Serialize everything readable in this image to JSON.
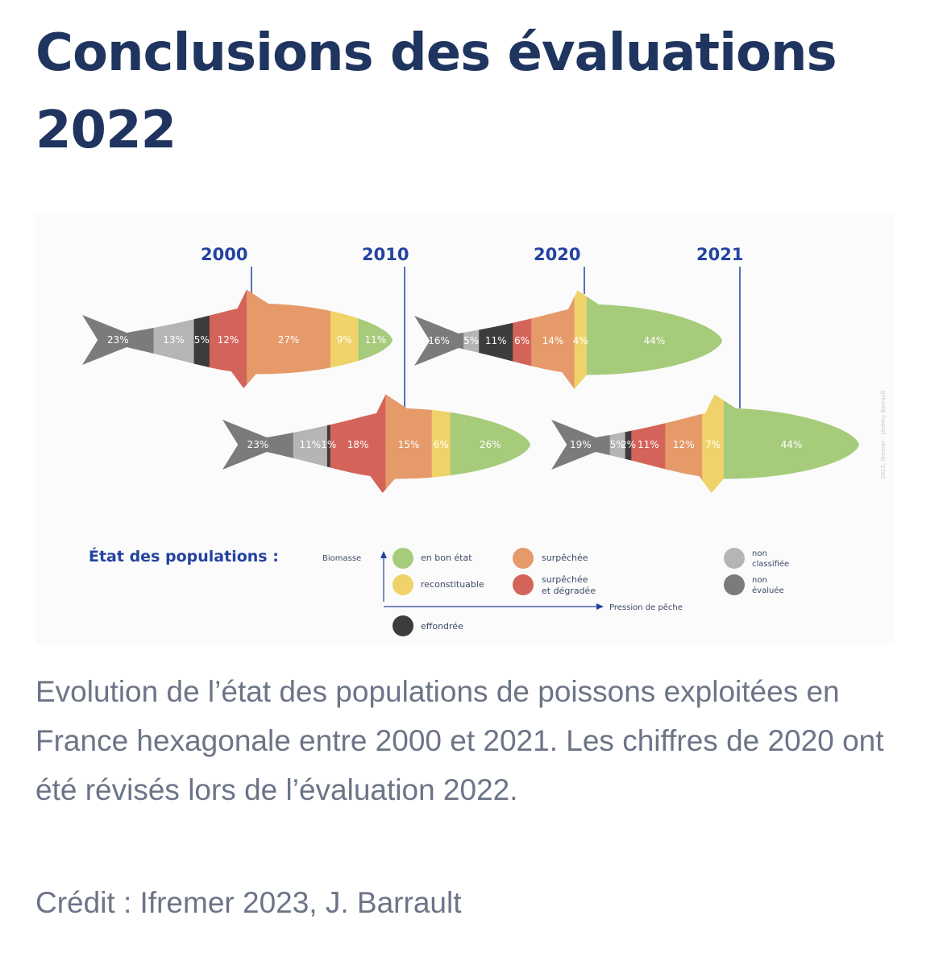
{
  "title": "Conclusions des évaluations 2022",
  "caption": "Evolution de l’état des populations de poissons exploitées en France hexagonale entre 2000 et 2021. Les chiffres de 2020 ont été révisés lors de l’évaluation 2022.",
  "credit": "Crédit : Ifremer 2023, J. Barrault",
  "infographic": {
    "years": [
      "2000",
      "2010",
      "2020",
      "2021"
    ],
    "image_credit": "2023, Ifremer – Jérémy Barrault",
    "legend": {
      "title": "État des populations :",
      "axis_y": "Biomasse",
      "axis_x": "Pression de pêche",
      "categories": [
        {
          "key": "bon",
          "label": "en bon état",
          "color": "#a6cb7b"
        },
        {
          "key": "recon",
          "label": "reconstituable",
          "color": "#efd36a"
        },
        {
          "key": "surp",
          "label": "surpêchée",
          "color": "#e69a6a"
        },
        {
          "key": "surpdeg1",
          "label": "surpêchée",
          "color": "#d4645a"
        },
        {
          "key": "surpdeg2",
          "label": "et dégradée",
          "color": "#d4645a"
        },
        {
          "key": "effond",
          "label": "effondrée",
          "color": "#3c3c3c"
        },
        {
          "key": "noncl1",
          "label": "non",
          "color": "#b5b5b5"
        },
        {
          "key": "noncl2",
          "label": "classifiée",
          "color": "#b5b5b5"
        },
        {
          "key": "noneval1",
          "label": "non",
          "color": "#7b7b7b"
        },
        {
          "key": "noneval2",
          "label": "évaluée",
          "color": "#7b7b7b"
        }
      ]
    },
    "fish": [
      {
        "year": "2000",
        "segments": [
          {
            "cat": "non évaluée",
            "label": "23%",
            "color": "#7b7b7b"
          },
          {
            "cat": "non classifiée",
            "label": "13%",
            "color": "#b5b5b5"
          },
          {
            "cat": "effondrée",
            "label": "5%",
            "color": "#3c3c3c"
          },
          {
            "cat": "surpêchée et dégradée",
            "label": "12%",
            "color": "#d4645a"
          },
          {
            "cat": "surpêchée",
            "label": "27%",
            "color": "#e69a6a"
          },
          {
            "cat": "reconstituable",
            "label": "9%",
            "color": "#efd36a"
          },
          {
            "cat": "en bon état",
            "label": "11%",
            "color": "#a6cb7b"
          }
        ]
      },
      {
        "year": "2010",
        "segments": [
          {
            "cat": "non évaluée",
            "label": "23%",
            "color": "#7b7b7b"
          },
          {
            "cat": "non classifiée",
            "label": "11%",
            "color": "#b5b5b5"
          },
          {
            "cat": "effondrée",
            "label": "1%",
            "color": "#3c3c3c"
          },
          {
            "cat": "surpêchée et dégradée",
            "label": "18%",
            "color": "#d4645a"
          },
          {
            "cat": "surpêchée",
            "label": "15%",
            "color": "#e69a6a"
          },
          {
            "cat": "reconstituable",
            "label": "6%",
            "color": "#efd36a"
          },
          {
            "cat": "en bon état",
            "label": "26%",
            "color": "#a6cb7b"
          }
        ]
      },
      {
        "year": "2020",
        "segments": [
          {
            "cat": "non évaluée",
            "label": "16%",
            "color": "#7b7b7b"
          },
          {
            "cat": "non classifiée",
            "label": "5%",
            "color": "#b5b5b5"
          },
          {
            "cat": "effondrée",
            "label": "11%",
            "color": "#3c3c3c"
          },
          {
            "cat": "surpêchée et dégradée",
            "label": "6%",
            "color": "#d4645a"
          },
          {
            "cat": "surpêchée",
            "label": "14%",
            "color": "#e69a6a"
          },
          {
            "cat": "reconstituable",
            "label": "4%",
            "color": "#efd36a"
          },
          {
            "cat": "en bon état",
            "label": "44%",
            "color": "#a6cb7b"
          }
        ]
      },
      {
        "year": "2021",
        "segments": [
          {
            "cat": "non évaluée",
            "label": "19%",
            "color": "#7b7b7b"
          },
          {
            "cat": "non classifiée",
            "label": "5%",
            "color": "#b5b5b5"
          },
          {
            "cat": "effondrée",
            "label": "2%",
            "color": "#3c3c3c"
          },
          {
            "cat": "surpêchée et dégradée",
            "label": "11%",
            "color": "#d4645a"
          },
          {
            "cat": "surpêchée",
            "label": "12%",
            "color": "#e69a6a"
          },
          {
            "cat": "reconstituable",
            "label": "7%",
            "color": "#efd36a"
          },
          {
            "cat": "en bon état",
            "label": "44%",
            "color": "#a6cb7b"
          }
        ]
      }
    ]
  }
}
